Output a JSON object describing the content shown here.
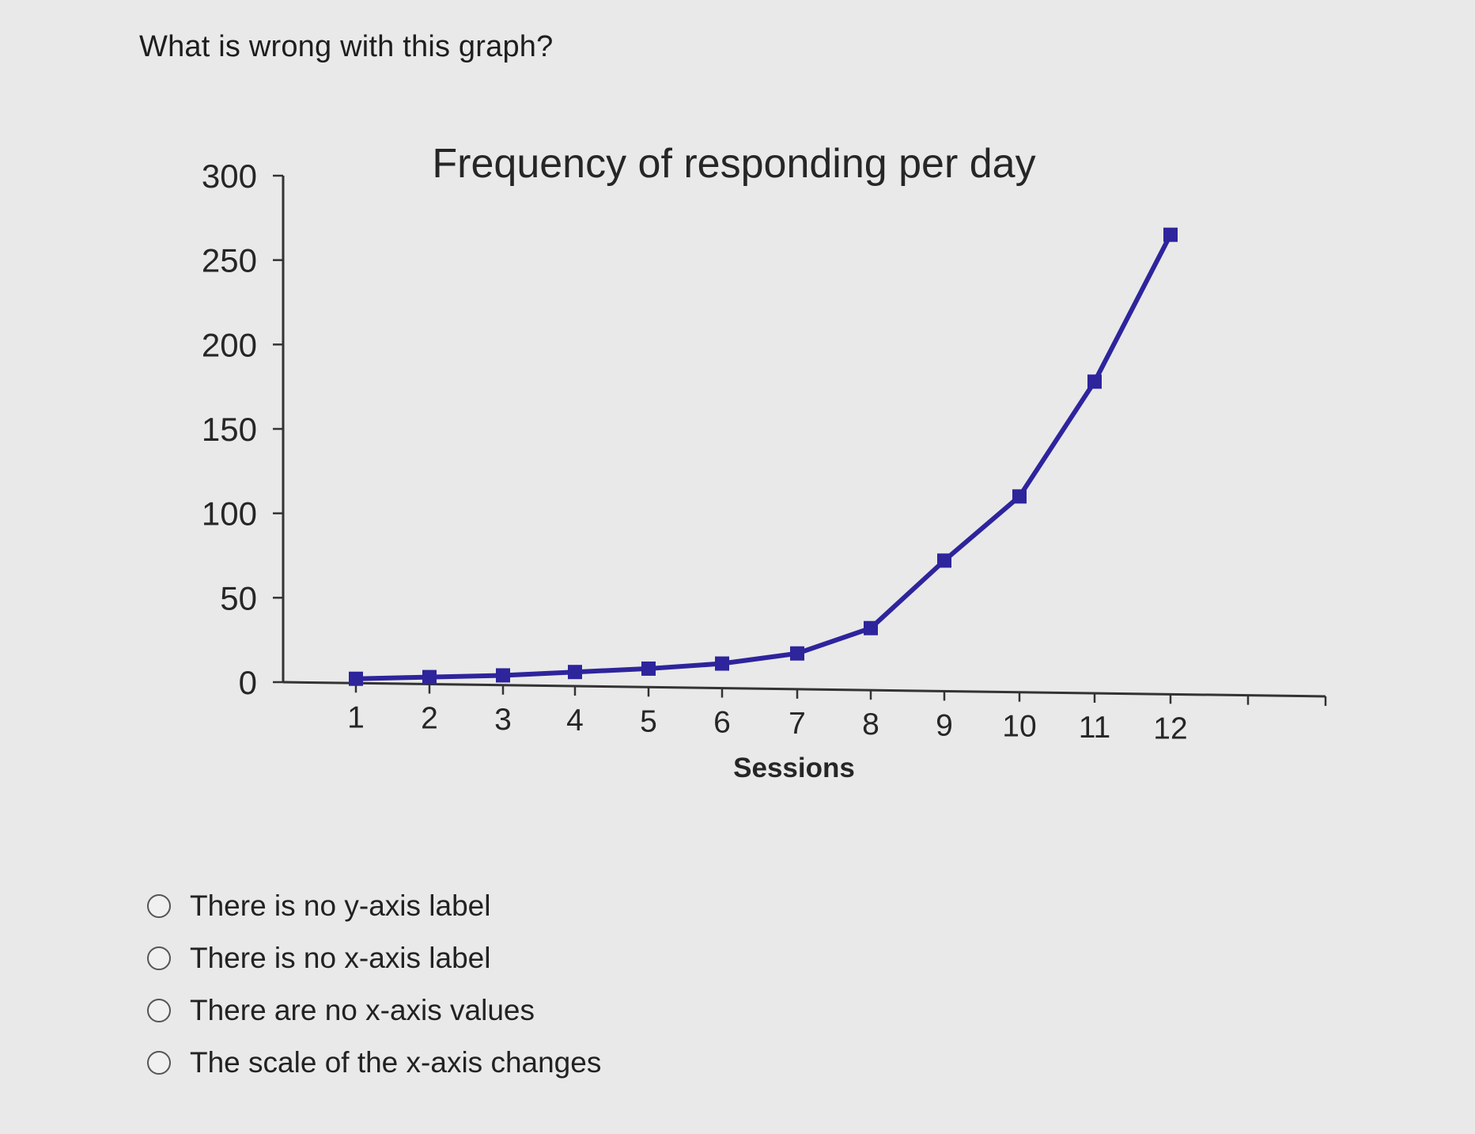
{
  "question": {
    "text": "What is wrong with this graph?"
  },
  "colors": {
    "series": "#2e249c",
    "axis": "#333333"
  },
  "chart_data": {
    "type": "line",
    "title": "Frequency of responding per day",
    "xlabel": "Sessions",
    "ylabel": "",
    "ylim": [
      0,
      300
    ],
    "yticks": [
      0,
      50,
      100,
      150,
      200,
      250,
      300
    ],
    "x": [
      1,
      2,
      3,
      4,
      5,
      6,
      7,
      8,
      9,
      10,
      11,
      12
    ],
    "values": [
      2,
      3,
      4,
      6,
      8,
      11,
      17,
      32,
      72,
      110,
      178,
      265
    ],
    "marker": "square",
    "grid": false,
    "legend": "none"
  },
  "options": [
    {
      "label": "There is no y-axis label"
    },
    {
      "label": "There is no x-axis label"
    },
    {
      "label": "There are no x-axis values"
    },
    {
      "label": "The scale of the x-axis changes"
    }
  ]
}
